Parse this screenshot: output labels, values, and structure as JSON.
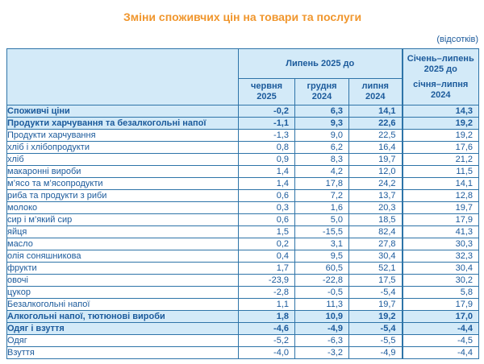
{
  "title": "Зміни споживчих цін на товари та послуги",
  "units_note": "(відсотків)",
  "accent_colors": {
    "title_orange": "#f0962d",
    "text_blue": "#1b5a9b",
    "border_blue": "#2e74a8",
    "highlight_bg": "#d3eaf8"
  },
  "table": {
    "header": {
      "group_label": "Липень 2025 до",
      "sub_cols": [
        {
          "line1": "червня",
          "line2": "2025"
        },
        {
          "line1": "грудня",
          "line2": "2024"
        },
        {
          "line1": "липня",
          "line2": "2024"
        }
      ],
      "last_col_top": "Січень–липень 2025 до",
      "last_col_bottom": "січня–липня 2024"
    },
    "rows": [
      {
        "label": "Споживчі ціни",
        "level": 0,
        "bold": true,
        "highlight": true,
        "values": [
          "-0,2",
          "6,3",
          "14,1",
          "14,3"
        ]
      },
      {
        "label": "Продукти харчування та безалкогольні напої",
        "level": 1,
        "bold": true,
        "highlight": true,
        "values": [
          "-1,1",
          "9,3",
          "22,6",
          "19,2"
        ]
      },
      {
        "label": "Продукти харчування",
        "level": 2,
        "bold": false,
        "highlight": false,
        "values": [
          "-1,3",
          "9,0",
          "22,5",
          "19,2"
        ]
      },
      {
        "label": "хліб і хлібопродукти",
        "level": 3,
        "bold": false,
        "highlight": false,
        "values": [
          "0,8",
          "6,2",
          "16,4",
          "17,6"
        ]
      },
      {
        "label": "хліб",
        "level": 3,
        "bold": false,
        "highlight": false,
        "values": [
          "0,9",
          "8,3",
          "19,7",
          "21,2"
        ]
      },
      {
        "label": "макаронні вироби",
        "level": 3,
        "bold": false,
        "highlight": false,
        "values": [
          "1,4",
          "4,2",
          "12,0",
          "11,5"
        ]
      },
      {
        "label": "м’ясо та м’ясопродукти",
        "level": 3,
        "bold": false,
        "highlight": false,
        "values": [
          "1,4",
          "17,8",
          "24,2",
          "14,1"
        ]
      },
      {
        "label": "риба та продукти з риби",
        "level": 3,
        "bold": false,
        "highlight": false,
        "values": [
          "0,6",
          "7,2",
          "13,7",
          "12,8"
        ]
      },
      {
        "label": "молоко",
        "level": 3,
        "bold": false,
        "highlight": false,
        "values": [
          "0,3",
          "1,6",
          "20,3",
          "19,7"
        ]
      },
      {
        "label": "сир і м’який сир",
        "level": 3,
        "bold": false,
        "highlight": false,
        "values": [
          "0,6",
          "5,0",
          "18,5",
          "17,9"
        ]
      },
      {
        "label": "яйця",
        "level": 3,
        "bold": false,
        "highlight": false,
        "values": [
          "1,5",
          "-15,5",
          "82,4",
          "41,3"
        ]
      },
      {
        "label": "масло",
        "level": 3,
        "bold": false,
        "highlight": false,
        "values": [
          "0,2",
          "3,1",
          "27,8",
          "30,3"
        ]
      },
      {
        "label": "олія соняшникова",
        "level": 3,
        "bold": false,
        "highlight": false,
        "values": [
          "0,4",
          "9,5",
          "30,4",
          "32,3"
        ]
      },
      {
        "label": "фрукти",
        "level": 3,
        "bold": false,
        "highlight": false,
        "values": [
          "1,7",
          "60,5",
          "52,1",
          "30,4"
        ]
      },
      {
        "label": "овочі",
        "level": 3,
        "bold": false,
        "highlight": false,
        "values": [
          "-23,9",
          "-22,8",
          "17,5",
          "30,2"
        ]
      },
      {
        "label": "цукор",
        "level": 3,
        "bold": false,
        "highlight": false,
        "values": [
          "-2,8",
          "-0,5",
          "-5,4",
          "5,8"
        ]
      },
      {
        "label": "Безалкогольні напої",
        "level": 2,
        "bold": false,
        "highlight": false,
        "values": [
          "1,1",
          "11,3",
          "19,7",
          "17,9"
        ]
      },
      {
        "label": "Алкогольні напої, тютюнові вироби",
        "level": 1,
        "bold": true,
        "highlight": true,
        "values": [
          "1,8",
          "10,9",
          "19,2",
          "17,0"
        ]
      },
      {
        "label": "Одяг і взуття",
        "level": 1,
        "bold": true,
        "highlight": true,
        "values": [
          "-4,6",
          "-4,9",
          "-5,4",
          "-4,4"
        ]
      },
      {
        "label": "Одяг",
        "level": 2,
        "bold": false,
        "highlight": false,
        "values": [
          "-5,2",
          "-6,3",
          "-5,5",
          "-4,5"
        ]
      },
      {
        "label": "Взуття",
        "level": 2,
        "bold": false,
        "highlight": false,
        "values": [
          "-4,0",
          "-3,2",
          "-4,9",
          "-4,4"
        ]
      }
    ]
  },
  "chart_data": {
    "type": "table",
    "title": "Зміни споживчих цін на товари та послуги",
    "units": "відсотків",
    "columns": [
      "Липень 2025 до червня 2025",
      "Липень 2025 до грудня 2024",
      "Липень 2025 до липня 2024",
      "Січень–липень 2025 до січня–липня 2024"
    ],
    "categories": [
      "Споживчі ціни",
      "Продукти харчування та безалкогольні напої",
      "Продукти харчування",
      "хліб і хлібопродукти",
      "хліб",
      "макаронні вироби",
      "м’ясо та м’ясопродукти",
      "риба та продукти з риби",
      "молоко",
      "сир і м’який сир",
      "яйця",
      "масло",
      "олія соняшникова",
      "фрукти",
      "овочі",
      "цукор",
      "Безалкогольні напої",
      "Алкогольні напої, тютюнові вироби",
      "Одяг і взуття",
      "Одяг",
      "Взуття"
    ],
    "series": [
      {
        "name": "Липень 2025 до червня 2025",
        "values": [
          -0.2,
          -1.1,
          -1.3,
          0.8,
          0.9,
          1.4,
          1.4,
          0.6,
          0.3,
          0.6,
          1.5,
          0.2,
          0.4,
          1.7,
          -23.9,
          -2.8,
          1.1,
          1.8,
          -4.6,
          -5.2,
          -4.0
        ]
      },
      {
        "name": "Липень 2025 до грудня 2024",
        "values": [
          6.3,
          9.3,
          9.0,
          6.2,
          8.3,
          4.2,
          17.8,
          7.2,
          1.6,
          5.0,
          -15.5,
          3.1,
          9.5,
          60.5,
          -22.8,
          -0.5,
          11.3,
          10.9,
          -4.9,
          -6.3,
          -3.2
        ]
      },
      {
        "name": "Липень 2025 до липня 2024",
        "values": [
          14.1,
          22.6,
          22.5,
          16.4,
          19.7,
          12.0,
          24.2,
          13.7,
          20.3,
          18.5,
          82.4,
          27.8,
          30.4,
          52.1,
          17.5,
          -5.4,
          19.7,
          19.2,
          -5.4,
          -5.5,
          -4.9
        ]
      },
      {
        "name": "Січень–липень 2025 до січня–липня 2024",
        "values": [
          14.3,
          19.2,
          19.2,
          17.6,
          21.2,
          11.5,
          14.1,
          12.8,
          19.7,
          17.9,
          41.3,
          30.3,
          32.3,
          30.4,
          30.2,
          5.8,
          17.9,
          17.0,
          -4.4,
          -4.5,
          -4.4
        ]
      }
    ]
  }
}
